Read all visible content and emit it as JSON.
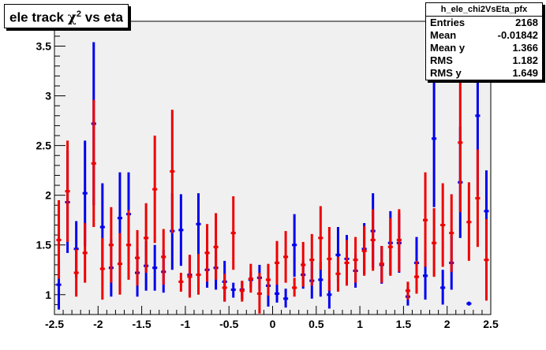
{
  "title": {
    "prefix": "ele track ",
    "chi": "χ",
    "sup": "2",
    "suffix": " vs eta"
  },
  "stats": {
    "name": "h_ele_chi2VsEta_pfx",
    "rows": [
      {
        "label": "Entries",
        "value": "2168"
      },
      {
        "label": "Mean",
        "value": "-0.01842"
      },
      {
        "label": "Mean y",
        "value": "1.366"
      },
      {
        "label": "RMS",
        "value": "1.182"
      },
      {
        "label": "RMS y",
        "value": "1.649"
      }
    ]
  },
  "colors": {
    "series_a": "#0000ee",
    "series_b": "#ee0000",
    "frame_bg": "#f0f0f0"
  },
  "chart_data": {
    "type": "scatter",
    "xlim": [
      -2.5,
      2.5
    ],
    "ylim": [
      0.8,
      3.75
    ],
    "x_ticks": [
      "-2.5",
      "-2",
      "-1.5",
      "-1",
      "-0.5",
      "0",
      "0.5",
      "1",
      "1.5",
      "2",
      "2.5"
    ],
    "y_ticks": [
      "1",
      "1.5",
      "2",
      "2.5",
      "3",
      "3.5"
    ],
    "bin_half_width": 0.0275,
    "series": [
      {
        "color": "#0000ee",
        "points": [
          {
            "x": -2.45,
            "y": 1.1,
            "lo": 0.85,
            "hi": 1.35
          },
          {
            "x": -2.35,
            "y": 1.93,
            "lo": 1.42,
            "hi": 2.45
          },
          {
            "x": -2.25,
            "y": 1.46,
            "lo": 1.17,
            "hi": 1.74
          },
          {
            "x": -2.15,
            "y": 2.02,
            "lo": 1.49,
            "hi": 2.55
          },
          {
            "x": -2.05,
            "y": 2.72,
            "lo": 1.9,
            "hi": 3.54
          },
          {
            "x": -1.95,
            "y": 1.68,
            "lo": 1.25,
            "hi": 2.12
          },
          {
            "x": -1.85,
            "y": 1.27,
            "lo": 0.98,
            "hi": 1.56
          },
          {
            "x": -1.75,
            "y": 1.77,
            "lo": 1.32,
            "hi": 2.23
          },
          {
            "x": -1.65,
            "y": 1.81,
            "lo": 1.39,
            "hi": 2.23
          },
          {
            "x": -1.55,
            "y": 1.22,
            "lo": 0.98,
            "hi": 1.46
          },
          {
            "x": -1.45,
            "y": 1.29,
            "lo": 1.04,
            "hi": 1.54
          },
          {
            "x": -1.35,
            "y": 1.27,
            "lo": 1.04,
            "hi": 1.5
          },
          {
            "x": -1.25,
            "y": 1.23,
            "lo": 1.02,
            "hi": 1.45
          },
          {
            "x": -1.15,
            "y": 1.64,
            "lo": 1.25,
            "hi": 2.02
          },
          {
            "x": -1.05,
            "y": 1.65,
            "lo": 1.29,
            "hi": 2.01
          },
          {
            "x": -0.95,
            "y": 1.2,
            "lo": 0.99,
            "hi": 1.4
          },
          {
            "x": -0.85,
            "y": 1.71,
            "lo": 1.4,
            "hi": 2.02
          },
          {
            "x": -0.75,
            "y": 1.25,
            "lo": 1.07,
            "hi": 1.44
          },
          {
            "x": -0.65,
            "y": 1.27,
            "lo": 1.05,
            "hi": 1.49
          },
          {
            "x": -0.55,
            "y": 1.13,
            "lo": 0.93,
            "hi": 1.34
          },
          {
            "x": -0.45,
            "y": 1.05,
            "lo": 0.97,
            "hi": 1.12
          },
          {
            "x": -0.35,
            "y": 1.05,
            "lo": 0.96,
            "hi": 1.13
          },
          {
            "x": -0.25,
            "y": 1.15,
            "lo": 1.07,
            "hi": 1.23
          },
          {
            "x": -0.15,
            "y": 1.17,
            "lo": 1.05,
            "hi": 1.3
          },
          {
            "x": -0.05,
            "y": 1.09,
            "lo": 0.88,
            "hi": 1.3
          },
          {
            "x": 0.05,
            "y": 1.01,
            "lo": 0.92,
            "hi": 1.11
          },
          {
            "x": 0.15,
            "y": 0.96,
            "lo": 0.87,
            "hi": 1.06
          },
          {
            "x": 0.25,
            "y": 1.5,
            "lo": 1.18,
            "hi": 1.81
          },
          {
            "x": 0.35,
            "y": 1.2,
            "lo": 1.06,
            "hi": 1.34
          },
          {
            "x": 0.45,
            "y": 1.14,
            "lo": 0.96,
            "hi": 1.33
          },
          {
            "x": 0.55,
            "y": 1.15,
            "lo": 0.98,
            "hi": 1.33
          },
          {
            "x": 0.65,
            "y": 1.0,
            "lo": 0.86,
            "hi": 1.15
          },
          {
            "x": 0.75,
            "y": 1.4,
            "lo": 1.13,
            "hi": 1.68
          },
          {
            "x": 0.85,
            "y": 1.36,
            "lo": 1.12,
            "hi": 1.6
          },
          {
            "x": 0.95,
            "y": 1.24,
            "lo": 1.07,
            "hi": 1.41
          },
          {
            "x": 1.05,
            "y": 1.46,
            "lo": 1.21,
            "hi": 1.72
          },
          {
            "x": 1.15,
            "y": 1.64,
            "lo": 1.27,
            "hi": 2.02
          },
          {
            "x": 1.25,
            "y": 1.3,
            "lo": 1.11,
            "hi": 1.49
          },
          {
            "x": 1.35,
            "y": 1.52,
            "lo": 1.2,
            "hi": 1.84
          },
          {
            "x": 1.45,
            "y": 1.52,
            "lo": 1.22,
            "hi": 1.82
          },
          {
            "x": 1.55,
            "y": 0.98,
            "lo": 0.89,
            "hi": 1.07
          },
          {
            "x": 1.65,
            "y": 1.32,
            "lo": 1.06,
            "hi": 1.58
          },
          {
            "x": 1.75,
            "y": 1.19,
            "lo": 0.95,
            "hi": 1.43
          },
          {
            "x": 1.85,
            "y": 2.57,
            "lo": 1.88,
            "hi": 3.26
          },
          {
            "x": 1.95,
            "y": 1.07,
            "lo": 0.9,
            "hi": 1.25
          },
          {
            "x": 2.05,
            "y": 1.32,
            "lo": 1.05,
            "hi": 1.6
          },
          {
            "x": 2.15,
            "y": 2.13,
            "lo": 1.57,
            "hi": 2.69
          },
          {
            "x": 2.25,
            "y": 0.91,
            "lo": 0.89,
            "hi": 0.93
          },
          {
            "x": 2.35,
            "y": 2.8,
            "lo": 2.0,
            "hi": 3.6
          },
          {
            "x": 2.45,
            "y": 1.84,
            "lo": 1.43,
            "hi": 2.25
          }
        ]
      },
      {
        "color": "#ee0000",
        "points": [
          {
            "x": -2.45,
            "y": 1.55,
            "lo": 1.16,
            "hi": 1.95
          },
          {
            "x": -2.35,
            "y": 2.04,
            "lo": 1.53,
            "hi": 2.55
          },
          {
            "x": -2.25,
            "y": 1.22,
            "lo": 0.98,
            "hi": 1.46
          },
          {
            "x": -2.15,
            "y": 1.42,
            "lo": 1.12,
            "hi": 1.72
          },
          {
            "x": -2.05,
            "y": 2.32,
            "lo": 1.68,
            "hi": 2.96
          },
          {
            "x": -1.95,
            "y": 1.26,
            "lo": 0.95,
            "hi": 1.57
          },
          {
            "x": -1.85,
            "y": 1.5,
            "lo": 1.12,
            "hi": 1.88
          },
          {
            "x": -1.75,
            "y": 1.31,
            "lo": 1.0,
            "hi": 1.62
          },
          {
            "x": -1.65,
            "y": 1.5,
            "lo": 1.15,
            "hi": 1.85
          },
          {
            "x": -1.55,
            "y": 1.37,
            "lo": 1.09,
            "hi": 1.65
          },
          {
            "x": -1.45,
            "y": 1.57,
            "lo": 1.22,
            "hi": 1.92
          },
          {
            "x": -1.35,
            "y": 2.06,
            "lo": 1.52,
            "hi": 2.6
          },
          {
            "x": -1.25,
            "y": 1.38,
            "lo": 1.1,
            "hi": 1.66
          },
          {
            "x": -1.15,
            "y": 2.24,
            "lo": 1.62,
            "hi": 2.86
          },
          {
            "x": -1.05,
            "y": 1.13,
            "lo": 1.03,
            "hi": 1.22
          },
          {
            "x": -0.95,
            "y": 1.18,
            "lo": 0.97,
            "hi": 1.4
          },
          {
            "x": -0.85,
            "y": 1.2,
            "lo": 1.0,
            "hi": 1.41
          },
          {
            "x": -0.75,
            "y": 1.42,
            "lo": 1.13,
            "hi": 1.71
          },
          {
            "x": -0.65,
            "y": 1.48,
            "lo": 1.15,
            "hi": 1.82
          },
          {
            "x": -0.55,
            "y": 1.07,
            "lo": 0.93,
            "hi": 1.21
          },
          {
            "x": -0.45,
            "y": 1.62,
            "lo": 1.25,
            "hi": 1.99
          },
          {
            "x": -0.35,
            "y": 1.04,
            "lo": 0.93,
            "hi": 1.14
          },
          {
            "x": -0.25,
            "y": 1.16,
            "lo": 1.02,
            "hi": 1.31
          },
          {
            "x": -0.15,
            "y": 1.01,
            "lo": 0.81,
            "hi": 1.22
          },
          {
            "x": -0.05,
            "y": 1.15,
            "lo": 0.99,
            "hi": 1.31
          },
          {
            "x": 0.05,
            "y": 1.32,
            "lo": 1.1,
            "hi": 1.54
          },
          {
            "x": 0.15,
            "y": 1.38,
            "lo": 1.12,
            "hi": 1.64
          },
          {
            "x": 0.25,
            "y": 1.07,
            "lo": 0.98,
            "hi": 1.17
          },
          {
            "x": 0.35,
            "y": 1.3,
            "lo": 1.08,
            "hi": 1.53
          },
          {
            "x": 0.45,
            "y": 1.35,
            "lo": 1.09,
            "hi": 1.61
          },
          {
            "x": 0.55,
            "y": 1.57,
            "lo": 1.25,
            "hi": 1.89
          },
          {
            "x": 0.65,
            "y": 1.36,
            "lo": 1.04,
            "hi": 1.68
          },
          {
            "x": 0.75,
            "y": 1.21,
            "lo": 1.03,
            "hi": 1.38
          },
          {
            "x": 0.85,
            "y": 1.32,
            "lo": 1.09,
            "hi": 1.55
          },
          {
            "x": 0.95,
            "y": 1.35,
            "lo": 1.12,
            "hi": 1.58
          },
          {
            "x": 1.05,
            "y": 1.44,
            "lo": 1.19,
            "hi": 1.69
          },
          {
            "x": 1.15,
            "y": 1.55,
            "lo": 1.24,
            "hi": 1.86
          },
          {
            "x": 1.25,
            "y": 1.31,
            "lo": 1.12,
            "hi": 1.49
          },
          {
            "x": 1.35,
            "y": 1.48,
            "lo": 1.19,
            "hi": 1.77
          },
          {
            "x": 1.45,
            "y": 1.55,
            "lo": 1.23,
            "hi": 1.86
          },
          {
            "x": 1.55,
            "y": 1.04,
            "lo": 0.95,
            "hi": 1.13
          },
          {
            "x": 1.65,
            "y": 1.18,
            "lo": 1.01,
            "hi": 1.34
          },
          {
            "x": 1.75,
            "y": 1.75,
            "lo": 1.28,
            "hi": 2.23
          },
          {
            "x": 1.85,
            "y": 1.52,
            "lo": 1.18,
            "hi": 1.87
          },
          {
            "x": 1.95,
            "y": 1.7,
            "lo": 1.28,
            "hi": 2.12
          },
          {
            "x": 2.05,
            "y": 1.62,
            "lo": 1.23,
            "hi": 2.01
          },
          {
            "x": 2.15,
            "y": 2.53,
            "lo": 1.83,
            "hi": 3.22
          },
          {
            "x": 2.25,
            "y": 1.73,
            "lo": 1.34,
            "hi": 2.13
          },
          {
            "x": 2.35,
            "y": 1.97,
            "lo": 1.48,
            "hi": 2.46
          },
          {
            "x": 2.45,
            "y": 1.35,
            "lo": 0.94,
            "hi": 1.76
          }
        ]
      }
    ]
  }
}
